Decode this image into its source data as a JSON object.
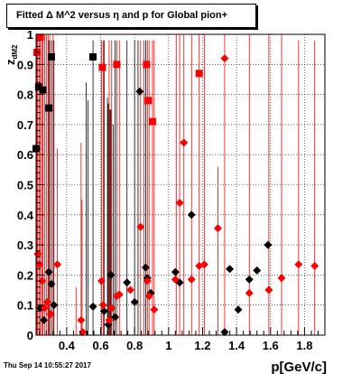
{
  "chart_data": {
    "type": "scatter",
    "title": "Fitted Δ M^2 versus η and p for Global pion+",
    "xlabel": "p[GeV/c]",
    "ylabel": "z_{dM2}",
    "ylabel_main": "z",
    "ylabel_sub": "dM2",
    "xlim": [
      0.22,
      1.92
    ],
    "ylim": [
      0,
      1
    ],
    "xticks": [
      "0.4",
      "0.6",
      "0.8",
      "1",
      "1.2",
      "1.4",
      "1.6",
      "1.8"
    ],
    "yticks": [
      "0",
      "0.1",
      "0.2",
      "0.3",
      "0.4",
      "0.5",
      "0.6",
      "0.7",
      "0.8",
      "0.9",
      "1"
    ],
    "grid": true,
    "colors": {
      "red": "#ff0000",
      "black": "#000000",
      "axis": "#000000"
    },
    "red_square_points": [
      {
        "x": 0.225,
        "y": 0.94
      },
      {
        "x": 0.245,
        "y": 0.99
      },
      {
        "x": 0.61,
        "y": 0.89
      },
      {
        "x": 0.695,
        "y": 0.9
      },
      {
        "x": 0.87,
        "y": 0.9
      },
      {
        "x": 0.88,
        "y": 0.78
      },
      {
        "x": 0.905,
        "y": 0.71
      },
      {
        "x": 1.18,
        "y": 0.87
      }
    ],
    "black_square_points": [
      {
        "x": 0.22,
        "y": 0.62
      },
      {
        "x": 0.235,
        "y": 0.825
      },
      {
        "x": 0.26,
        "y": 0.815
      },
      {
        "x": 0.295,
        "y": 0.755
      },
      {
        "x": 0.31,
        "y": 0.925
      },
      {
        "x": 0.555,
        "y": 0.925
      }
    ],
    "red_diamond_points": [
      {
        "x": 0.23,
        "y": 0.27
      },
      {
        "x": 0.24,
        "y": 0.235
      },
      {
        "x": 0.255,
        "y": 0.18
      },
      {
        "x": 0.27,
        "y": 0.09
      },
      {
        "x": 0.285,
        "y": 0.11
      },
      {
        "x": 0.305,
        "y": 0.07
      },
      {
        "x": 0.345,
        "y": 0.235
      },
      {
        "x": 0.485,
        "y": 0.05
      },
      {
        "x": 0.495,
        "y": 0.01
      },
      {
        "x": 0.605,
        "y": 0.18
      },
      {
        "x": 0.615,
        "y": 0.1
      },
      {
        "x": 0.65,
        "y": 0.05
      },
      {
        "x": 0.665,
        "y": 0.09
      },
      {
        "x": 0.695,
        "y": 0.13
      },
      {
        "x": 0.71,
        "y": 0.135
      },
      {
        "x": 0.775,
        "y": 0.15
      },
      {
        "x": 0.835,
        "y": 0.36
      },
      {
        "x": 0.875,
        "y": 0.18
      },
      {
        "x": 0.885,
        "y": 0.13
      },
      {
        "x": 0.915,
        "y": 0.085
      },
      {
        "x": 1.04,
        "y": 0.185
      },
      {
        "x": 1.065,
        "y": 0.44
      },
      {
        "x": 1.09,
        "y": 0.64
      },
      {
        "x": 1.135,
        "y": 0.185
      },
      {
        "x": 1.18,
        "y": 0.23
      },
      {
        "x": 1.21,
        "y": 0.235
      },
      {
        "x": 1.29,
        "y": 0.355
      },
      {
        "x": 1.33,
        "y": 0.92
      },
      {
        "x": 1.475,
        "y": 0.14
      },
      {
        "x": 1.59,
        "y": 0.15
      },
      {
        "x": 1.665,
        "y": 0.19
      },
      {
        "x": 1.765,
        "y": 0.235
      },
      {
        "x": 1.86,
        "y": 0.23
      }
    ],
    "black_diamond_points": [
      {
        "x": 0.245,
        "y": 0.09
      },
      {
        "x": 0.265,
        "y": 0.05
      },
      {
        "x": 0.295,
        "y": 0.21
      },
      {
        "x": 0.31,
        "y": 0.17
      },
      {
        "x": 0.325,
        "y": 0.1
      },
      {
        "x": 0.555,
        "y": 0.095
      },
      {
        "x": 0.62,
        "y": 0.08
      },
      {
        "x": 0.645,
        "y": 0.035
      },
      {
        "x": 0.66,
        "y": 0.2
      },
      {
        "x": 0.685,
        "y": 0.06
      },
      {
        "x": 0.755,
        "y": 0.175
      },
      {
        "x": 0.8,
        "y": 0.11
      },
      {
        "x": 0.83,
        "y": 0.81
      },
      {
        "x": 0.865,
        "y": 0.225
      },
      {
        "x": 0.875,
        "y": 0.19
      },
      {
        "x": 0.895,
        "y": 0.14
      },
      {
        "x": 1.04,
        "y": 0.21
      },
      {
        "x": 1.065,
        "y": 0.175
      },
      {
        "x": 1.135,
        "y": 0.4
      },
      {
        "x": 1.33,
        "y": 0.01
      },
      {
        "x": 1.36,
        "y": 0.22
      },
      {
        "x": 1.41,
        "y": 0.085
      },
      {
        "x": 1.475,
        "y": 0.185
      },
      {
        "x": 1.52,
        "y": 0.215
      },
      {
        "x": 1.585,
        "y": 0.3
      }
    ],
    "red_lines": [
      {
        "x": 0.225,
        "top": 1.0
      },
      {
        "x": 0.23,
        "top": 1.0
      },
      {
        "x": 0.24,
        "top": 1.0
      },
      {
        "x": 0.245,
        "top": 1.0
      },
      {
        "x": 0.255,
        "top": 1.0
      },
      {
        "x": 0.26,
        "top": 1.0
      },
      {
        "x": 0.27,
        "top": 1.0
      },
      {
        "x": 0.28,
        "top": 1.0
      },
      {
        "x": 0.29,
        "top": 1.0
      },
      {
        "x": 0.3,
        "top": 1.0
      },
      {
        "x": 0.32,
        "top": 1.0
      },
      {
        "x": 0.345,
        "top": 0.62
      },
      {
        "x": 0.455,
        "top": 0.16
      },
      {
        "x": 0.485,
        "top": 0.64
      },
      {
        "x": 0.49,
        "top": 0.45
      },
      {
        "x": 0.605,
        "top": 0.98
      },
      {
        "x": 0.615,
        "top": 0.98
      },
      {
        "x": 0.65,
        "top": 0.98
      },
      {
        "x": 0.665,
        "top": 0.98
      },
      {
        "x": 0.695,
        "top": 0.98
      },
      {
        "x": 0.71,
        "top": 0.98
      },
      {
        "x": 0.835,
        "top": 0.98
      },
      {
        "x": 0.855,
        "top": 0.98
      },
      {
        "x": 0.875,
        "top": 0.98
      },
      {
        "x": 0.885,
        "top": 0.98
      },
      {
        "x": 0.905,
        "top": 0.98
      },
      {
        "x": 0.915,
        "top": 0.98
      },
      {
        "x": 1.045,
        "top": 1.0
      },
      {
        "x": 1.065,
        "top": 1.0
      },
      {
        "x": 1.09,
        "top": 1.0
      },
      {
        "x": 1.135,
        "top": 1.0
      },
      {
        "x": 1.18,
        "top": 1.0
      },
      {
        "x": 1.21,
        "top": 1.0
      },
      {
        "x": 1.29,
        "top": 0.56
      },
      {
        "x": 1.33,
        "top": 1.0
      },
      {
        "x": 1.475,
        "top": 1.0
      },
      {
        "x": 1.59,
        "top": 1.0
      },
      {
        "x": 1.665,
        "top": 1.0
      },
      {
        "x": 1.765,
        "top": 0.98
      },
      {
        "x": 1.86,
        "top": 0.98
      }
    ],
    "black_lines": [
      {
        "x": 0.295,
        "top": 0.98
      },
      {
        "x": 0.31,
        "top": 0.98
      },
      {
        "x": 0.325,
        "top": 0.98
      },
      {
        "x": 0.515,
        "top": 0.84
      },
      {
        "x": 0.525,
        "top": 0.78
      },
      {
        "x": 0.555,
        "top": 0.98
      },
      {
        "x": 0.62,
        "top": 0.98
      },
      {
        "x": 0.64,
        "top": 0.79
      },
      {
        "x": 0.645,
        "top": 0.77
      },
      {
        "x": 0.655,
        "top": 0.75
      },
      {
        "x": 0.66,
        "top": 0.75
      },
      {
        "x": 0.675,
        "top": 0.7
      },
      {
        "x": 0.685,
        "top": 0.98
      },
      {
        "x": 0.755,
        "top": 0.98
      },
      {
        "x": 0.8,
        "top": 0.98
      },
      {
        "x": 0.82,
        "top": 0.98
      },
      {
        "x": 0.865,
        "top": 0.98
      }
    ],
    "date_stamp": "Thu Sep 14 10:55:27 2017"
  }
}
